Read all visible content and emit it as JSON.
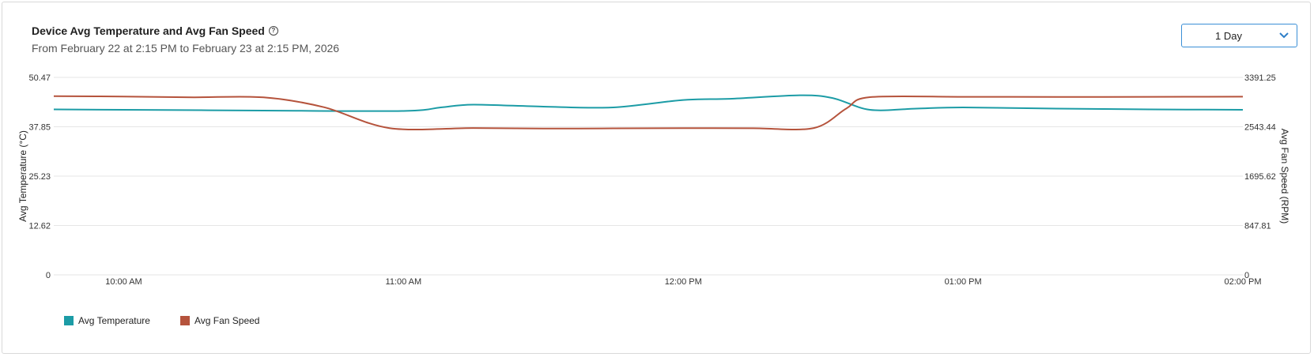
{
  "header": {
    "title": "Device Avg Temperature and Avg Fan Speed",
    "info_icon": "question-circle-icon",
    "subtitle": "From February 22 at 2:15 PM to February 23 at 2:15 PM, 2026"
  },
  "range_select": {
    "value": "1 Day",
    "icon": "chevron-down-icon"
  },
  "chart_data": {
    "type": "line",
    "title": "Device Avg Temperature and Avg Fan Speed",
    "subtitle": "From February 22 at 2:15 PM to February 23 at 2:15 PM, 2026",
    "x_tick_labels": [
      "10:00 AM",
      "11:00 AM",
      "12:00 PM",
      "01:00 PM",
      "02:00 PM"
    ],
    "x_tick_minutes": [
      600,
      660,
      720,
      780,
      840
    ],
    "xlim": [
      585,
      840
    ],
    "y_left": {
      "label": "Avg Temperature (°C)",
      "ticks": [
        "0",
        "12.62",
        "25.23",
        "37.85",
        "50.47"
      ],
      "ylim": [
        0,
        50.47
      ]
    },
    "y_right": {
      "label": "Avg Fan Speed (RPM)",
      "ticks": [
        "0",
        "847.81",
        "1695.62",
        "2543.44",
        "3391.25"
      ],
      "ylim": [
        0,
        3391.25
      ]
    },
    "grid": true,
    "legend_position": "bottom-left",
    "series": [
      {
        "name": "Avg Temperature",
        "axis": "left",
        "color": "#1c9ca6",
        "x": [
          585,
          600,
          630,
          660,
          668,
          675,
          690,
          705,
          720,
          730,
          745,
          752,
          760,
          770,
          780,
          800,
          820,
          840
        ],
        "values": [
          42.3,
          42.2,
          42.0,
          41.9,
          42.8,
          43.5,
          43.0,
          42.8,
          44.7,
          45.0,
          45.9,
          45.2,
          42.2,
          42.5,
          42.8,
          42.5,
          42.3,
          42.2
        ]
      },
      {
        "name": "Avg Fan Speed",
        "axis": "right",
        "color": "#b5533c",
        "x": [
          585,
          600,
          615,
          630,
          643,
          657,
          675,
          690,
          705,
          720,
          735,
          748,
          755,
          760,
          780,
          800,
          820,
          840
        ],
        "values": [
          3068,
          3063,
          3050,
          3048,
          2878,
          2520,
          2522,
          2512,
          2516,
          2520,
          2518,
          2522,
          2860,
          3052,
          3058,
          3055,
          3058,
          3060
        ]
      }
    ]
  }
}
